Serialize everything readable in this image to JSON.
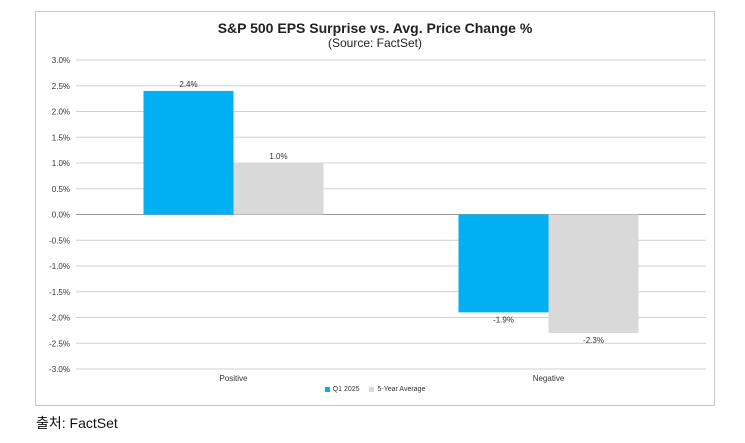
{
  "chart_data": {
    "type": "bar",
    "title": "S&P 500 EPS Surprise vs. Avg. Price Change %",
    "subtitle": "(Source: FactSet)",
    "categories": [
      "Positive",
      "Negative"
    ],
    "series": [
      {
        "name": "Q1 2025",
        "color": "#00b0f0",
        "values": [
          2.4,
          -1.9
        ],
        "labels": [
          "2.4%",
          "-1.9%"
        ]
      },
      {
        "name": "5-Year Average",
        "color": "#d9d9d9",
        "values": [
          1.0,
          -2.3
        ],
        "labels": [
          "1.0%",
          "-2.3%"
        ]
      }
    ],
    "ylim": [
      -3.0,
      3.0
    ],
    "yticks": [
      "3.0%",
      "2.5%",
      "2.0%",
      "1.5%",
      "1.0%",
      "0.5%",
      "0.0%",
      "-0.5%",
      "-1.0%",
      "-1.5%",
      "-2.0%",
      "-2.5%",
      "-3.0%"
    ],
    "ytick_values": [
      3.0,
      2.5,
      2.0,
      1.5,
      1.0,
      0.5,
      0.0,
      -0.5,
      -1.0,
      -1.5,
      -2.0,
      -2.5,
      -3.0
    ],
    "grid": true,
    "legend": "bottom"
  },
  "caption": "출처: FactSet"
}
